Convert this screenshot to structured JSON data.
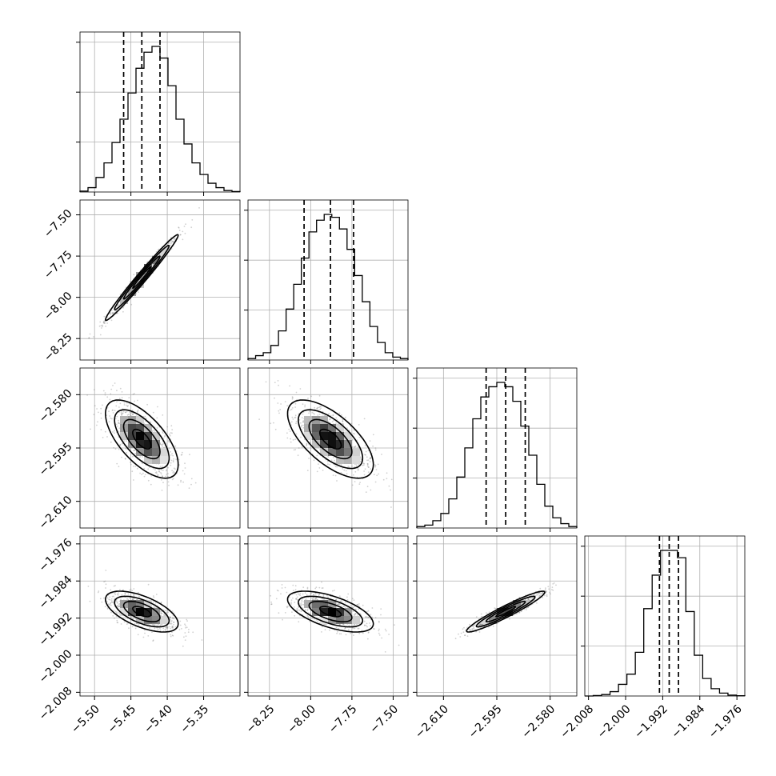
{
  "chart_data": {
    "type": "corner",
    "grid": true,
    "parameters": [
      {
        "mean": -5.435,
        "sd": 0.025,
        "range": [
          -5.52,
          -5.3
        ],
        "ticks": [
          -5.5,
          -5.45,
          -5.4,
          -5.35
        ],
        "tick_labels": [
          "−5.50",
          "−5.45",
          "−5.40",
          "−5.35"
        ],
        "quantiles": [
          -5.46,
          -5.435,
          -5.41
        ],
        "hist_bins": [
          0.006,
          0.03,
          0.1,
          0.2,
          0.34,
          0.5,
          0.68,
          0.85,
          0.96,
          1.0,
          0.92,
          0.73,
          0.5,
          0.33,
          0.2,
          0.12,
          0.06,
          0.03,
          0.01,
          0.003
        ]
      },
      {
        "mean": -7.88,
        "sd": 0.13,
        "range": [
          -8.38,
          -7.41
        ],
        "ticks": [
          -8.25,
          -8.0,
          -7.75,
          -7.5
        ],
        "tick_labels": [
          "−8.25",
          "−8.00",
          "−7.75",
          "−7.50"
        ],
        "quantiles": [
          -8.04,
          -7.88,
          -7.74
        ],
        "hist_bins": [
          0.01,
          0.03,
          0.05,
          0.1,
          0.2,
          0.35,
          0.52,
          0.7,
          0.88,
          0.96,
          1.0,
          0.98,
          0.9,
          0.76,
          0.58,
          0.4,
          0.23,
          0.12,
          0.05,
          0.02,
          0.01
        ]
      },
      {
        "mean": -2.5925,
        "sd": 0.0055,
        "range": [
          -2.6175,
          -2.5725
        ],
        "ticks": [
          -2.61,
          -2.595,
          -2.58
        ],
        "tick_labels": [
          "−2.610",
          "−2.595",
          "−2.580"
        ],
        "quantiles": [
          -2.598,
          -2.5925,
          -2.587
        ],
        "hist_bins": [
          0.01,
          0.02,
          0.05,
          0.1,
          0.2,
          0.35,
          0.55,
          0.75,
          0.9,
          0.97,
          1.0,
          0.97,
          0.87,
          0.7,
          0.5,
          0.3,
          0.15,
          0.07,
          0.03,
          0.01
        ]
      },
      {
        "mean": -1.9906,
        "sd": 0.0022,
        "range": [
          -2.0088,
          -1.9743
        ],
        "ticks": [
          -2.008,
          -2.0,
          -1.992,
          -1.984,
          -1.976
        ],
        "tick_labels": [
          "−2.008",
          "−2.000",
          "−1.992",
          "−1.984",
          "−1.976"
        ],
        "quantiles": [
          -1.9927,
          -1.9906,
          -1.9886
        ],
        "hist_bins": [
          0,
          0.003,
          0.01,
          0.03,
          0.08,
          0.15,
          0.3,
          0.6,
          0.83,
          1.0,
          1.0,
          0.95,
          0.58,
          0.28,
          0.12,
          0.05,
          0.02,
          0.006,
          0.002
        ]
      }
    ],
    "correlations": {
      "1-0": 0.985,
      "2-0": -0.65,
      "2-1": -0.65,
      "3-0": -0.6,
      "3-1": -0.6,
      "3-2": 0.95
    }
  }
}
